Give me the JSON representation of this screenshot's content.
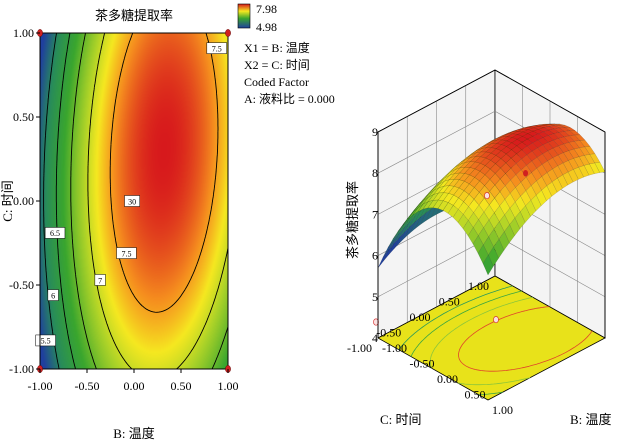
{
  "chart_data": [
    {
      "type": "contour",
      "title": "茶多糖提取率",
      "xlabel": "B: 温度",
      "ylabel": "C: 时间",
      "xlim": [
        -1.0,
        1.0
      ],
      "ylim": [
        -1.0,
        1.0
      ],
      "xticks": [
        "-1.00",
        "-0.50",
        "0.00",
        "0.50",
        "1.00"
      ],
      "yticks": [
        "-1.00",
        "-0.50",
        "0.00",
        "0.50",
        "1.00"
      ],
      "colorbar": {
        "max_label": "7.98",
        "min_label": "4.98",
        "min": 4.98,
        "max": 7.98
      },
      "legend_lines": [
        "X1 = B: 温度",
        "X2 = C: 时间",
        "Coded Factor",
        "A: 液料比 = 0.000"
      ],
      "contour_labels": [
        {
          "text": "7.5",
          "x": 0.88,
          "y": 0.91
        },
        {
          "text": "30",
          "x": -0.02,
          "y": 0.0
        },
        {
          "text": "7.5",
          "x": -0.08,
          "y": -0.31
        },
        {
          "text": "7",
          "x": -0.36,
          "y": -0.47
        },
        {
          "text": "6.5",
          "x": -0.84,
          "y": -0.19
        },
        {
          "text": "6",
          "x": -0.86,
          "y": -0.56
        },
        {
          "text": "5.5",
          "x": -0.94,
          "y": -0.83
        }
      ],
      "contour_levels": [
        5.5,
        6.0,
        6.5,
        7.0,
        7.5
      ],
      "design_points": [
        {
          "x": -1.0,
          "y": 1.0
        },
        {
          "x": 1.0,
          "y": 1.0
        },
        {
          "x": -1.0,
          "y": -1.0
        },
        {
          "x": 1.0,
          "y": -1.0
        }
      ]
    },
    {
      "type": "surface3d",
      "zlabel": "茶多糖提取率",
      "xlabel": "C: 时间",
      "ylabel": "B: 温度",
      "zlim": [
        4,
        9
      ],
      "zticks": [
        "4",
        "5",
        "6",
        "7",
        "8",
        "9"
      ],
      "c_ticks": [
        "1.00",
        "0.50",
        "0.00",
        "-0.50",
        "-1.00"
      ],
      "b_ticks": [
        "-1.00",
        "-0.50",
        "0.00",
        "0.50",
        "1.00"
      ],
      "peak_point": {
        "b": 0.3,
        "c": 0.3,
        "z": 8.0
      }
    }
  ]
}
